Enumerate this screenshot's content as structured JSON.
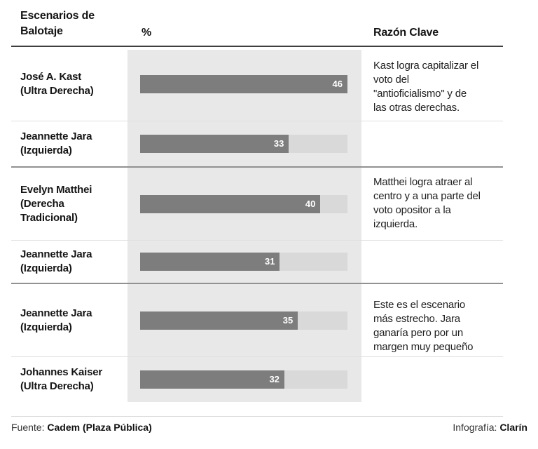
{
  "header": {
    "scenarios": "Escenarios de\nBalotaje",
    "percent": "%",
    "reason": "Razón Clave"
  },
  "rows": [
    {
      "name": "José A. Kast",
      "party": "(Ultra Derecha)"
    },
    {
      "name": "Jeannette Jara",
      "party": "(Izquierda)"
    },
    {
      "name": "Evelyn Matthei",
      "party": "(Derecha Tradicional)"
    },
    {
      "name": "Jeannette Jara",
      "party": "(Izquierda)"
    },
    {
      "name": "Jeannette Jara",
      "party": "(Izquierda)"
    },
    {
      "name": "Johannes Kaiser",
      "party": "(Ultra Derecha)"
    }
  ],
  "reasons": [
    "Kast logra capitalizar el\nvoto del\n\"antioficialismo\" y de\nlas otras derechas.",
    "Matthei logra atraer al\ncentro y a una parte del\nvoto opositor a la\nizquierda.",
    "Este es el escenario\nmás estrecho. Jara\nganaría pero por un\nmargen muy pequeño"
  ],
  "footer": {
    "source_label": "Fuente: ",
    "source": "Cadem (Plaza Pública)",
    "credit_label": "Infografía: ",
    "credit": "Clarín"
  },
  "chart_data": {
    "type": "bar",
    "orientation": "horizontal",
    "title": "Escenarios de Balotaje",
    "xlabel": "%",
    "annotation_column": "Razón Clave",
    "xlim": [
      0,
      46
    ],
    "grid": false,
    "bar_color": "#7d7d7d",
    "track_color": "#d9d9d9",
    "panel_color": "#e8e8e8",
    "groups": [
      {
        "candidates": [
          "José A. Kast (Ultra Derecha)",
          "Jeannette Jara (Izquierda)"
        ],
        "values": [
          46,
          33
        ],
        "reason": "Kast logra capitalizar el voto del \"antioficialismo\" y de las otras derechas."
      },
      {
        "candidates": [
          "Evelyn Matthei (Derecha Tradicional)",
          "Jeannette Jara (Izquierda)"
        ],
        "values": [
          40,
          31
        ],
        "reason": "Matthei logra atraer al centro y a una parte del voto opositor a la izquierda."
      },
      {
        "candidates": [
          "Jeannette Jara (Izquierda)",
          "Johannes Kaiser (Ultra Derecha)"
        ],
        "values": [
          35,
          32
        ],
        "reason": "Este es el escenario más estrecho. Jara ganaría pero por un margen muy pequeño"
      }
    ]
  }
}
